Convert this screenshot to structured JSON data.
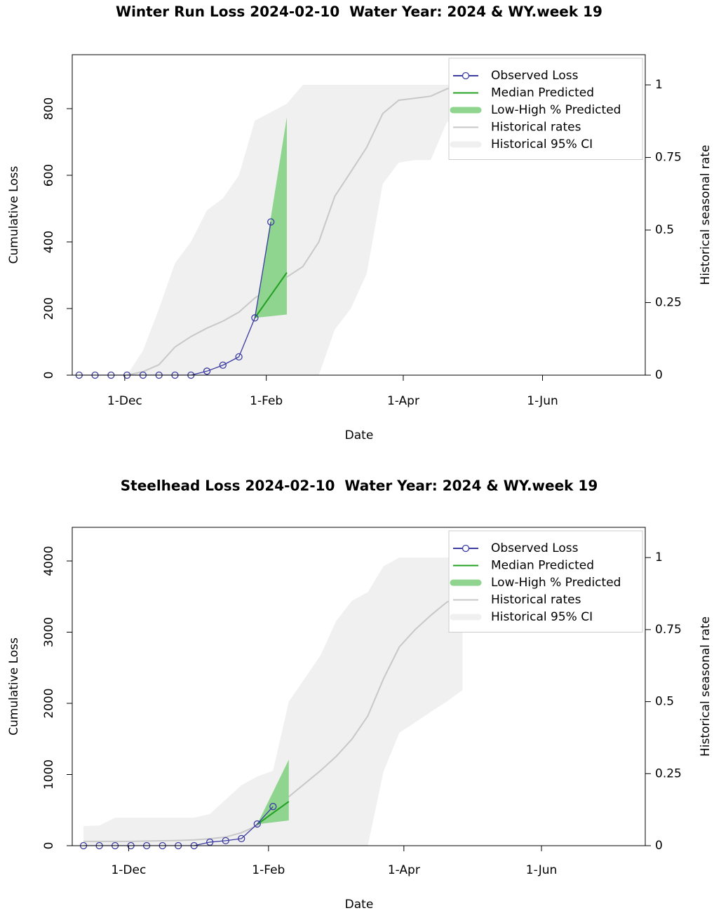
{
  "chart_data": [
    {
      "type": "line",
      "title": "Winter Run Loss 2024-02-10  Water Year: 2024 & WY.week 19",
      "x_label": "Date",
      "y_label": "Cumulative Loss",
      "y2_label": "Historical seasonal rate",
      "xlim": [
        "2023-11-08",
        "2024-07-16"
      ],
      "xticks": [
        {
          "value": "2023-12-01",
          "label": "1-Dec"
        },
        {
          "value": "2024-02-01",
          "label": "1-Feb"
        },
        {
          "value": "2024-04-01",
          "label": "1-Apr"
        },
        {
          "value": "2024-06-01",
          "label": "1-Jun"
        }
      ],
      "ylim": [
        0,
        962
      ],
      "yticks": [
        0,
        200,
        400,
        600,
        800
      ],
      "y2lim": [
        0,
        1.104
      ],
      "y2ticks": [
        0,
        0.25,
        0.5,
        0.75,
        1
      ],
      "legend": "topright",
      "series": [
        {
          "name": "Historical 95% CI",
          "color": "#f0f0f0",
          "axis": "y2",
          "x": [
            "2023-12-02",
            "2023-12-09",
            "2023-12-16",
            "2023-12-23",
            "2023-12-30",
            "2024-01-06",
            "2024-01-13",
            "2024-01-20",
            "2024-01-27",
            "2024-02-03",
            "2024-02-10",
            "2024-02-17",
            "2024-02-24",
            "2024-03-02",
            "2024-03-09",
            "2024-03-16",
            "2024-03-23",
            "2024-03-30",
            "2024-04-06",
            "2024-04-13",
            "2024-04-20",
            "2024-04-27"
          ],
          "low": [
            0,
            0,
            0,
            0,
            0,
            0,
            0,
            0,
            0,
            0,
            0,
            0,
            0,
            0.157,
            0.229,
            0.35,
            0.659,
            0.732,
            0.741,
            0.741,
            0.87,
            0.9
          ],
          "high": [
            0,
            0.085,
            0.229,
            0.386,
            0.459,
            0.568,
            0.609,
            0.688,
            0.877,
            0.906,
            0.935,
            1,
            1,
            1,
            1,
            1,
            1,
            1,
            1,
            1,
            1,
            1
          ]
        },
        {
          "name": "Historical rates",
          "color": "#c8c8c8",
          "axis": "y2",
          "x": [
            "2023-12-02",
            "2023-12-09",
            "2023-12-16",
            "2023-12-23",
            "2023-12-30",
            "2024-01-06",
            "2024-01-13",
            "2024-01-20",
            "2024-01-27",
            "2024-02-03",
            "2024-02-10",
            "2024-02-17",
            "2024-02-24",
            "2024-03-02",
            "2024-03-09",
            "2024-03-16",
            "2024-03-23",
            "2024-03-30",
            "2024-04-06",
            "2024-04-13",
            "2024-04-20",
            "2024-04-27"
          ],
          "values": [
            0,
            0.012,
            0.036,
            0.097,
            0.133,
            0.162,
            0.186,
            0.217,
            0.266,
            0.302,
            0.338,
            0.374,
            0.459,
            0.616,
            0.7,
            0.785,
            0.901,
            0.947,
            0.954,
            0.961,
            0.986,
            1
          ]
        },
        {
          "name": "Low-High % Predicted",
          "color": "#8fd48f",
          "x": [
            "2024-01-27",
            "2024-02-10"
          ],
          "low": [
            172,
            182
          ],
          "high": [
            172,
            775
          ]
        },
        {
          "name": "Median Predicted",
          "color": "#22a022",
          "x": [
            "2024-01-27",
            "2024-02-10"
          ],
          "values": [
            172,
            308
          ]
        },
        {
          "name": "Observed Loss",
          "color": "#3b3ba0",
          "marker": "circle",
          "x": [
            "2023-11-11",
            "2023-11-18",
            "2023-11-25",
            "2023-12-02",
            "2023-12-09",
            "2023-12-16",
            "2023-12-23",
            "2023-12-30",
            "2024-01-06",
            "2024-01-13",
            "2024-01-20",
            "2024-01-27",
            "2024-02-03"
          ],
          "values": [
            0,
            0,
            0,
            0,
            0,
            0,
            0,
            0,
            12,
            30,
            55,
            172,
            460
          ]
        }
      ]
    },
    {
      "type": "line",
      "title": "Steelhead Loss 2024-02-10  Water Year: 2024 & WY.week 19",
      "x_label": "Date",
      "y_label": "Cumulative Loss",
      "y2_label": "Historical seasonal rate",
      "xlim": [
        "2023-11-06",
        "2024-07-17"
      ],
      "xticks": [
        {
          "value": "2023-12-01",
          "label": "1-Dec"
        },
        {
          "value": "2024-02-01",
          "label": "1-Feb"
        },
        {
          "value": "2024-04-01",
          "label": "1-Apr"
        },
        {
          "value": "2024-06-01",
          "label": "1-Jun"
        }
      ],
      "ylim": [
        0,
        4473
      ],
      "yticks": [
        0,
        1000,
        2000,
        3000,
        4000
      ],
      "y2lim": [
        0,
        1.105
      ],
      "y2ticks": [
        0,
        0.25,
        0.5,
        0.75,
        1
      ],
      "legend": "topright",
      "series": [
        {
          "name": "Historical 95% CI",
          "color": "#f0f0f0",
          "axis": "y2",
          "x": [
            "2023-11-11",
            "2023-11-18",
            "2023-11-25",
            "2023-12-02",
            "2023-12-09",
            "2023-12-16",
            "2023-12-23",
            "2023-12-30",
            "2024-01-06",
            "2024-01-13",
            "2024-01-20",
            "2024-01-27",
            "2024-02-03",
            "2024-02-10",
            "2024-02-17",
            "2024-02-24",
            "2024-03-02",
            "2024-03-09",
            "2024-03-16",
            "2024-03-23",
            "2024-03-30",
            "2024-04-06",
            "2024-04-13",
            "2024-04-20",
            "2024-04-27"
          ],
          "low": [
            0,
            0,
            0,
            0,
            0,
            0,
            0,
            0,
            0,
            0,
            0,
            0,
            0,
            0,
            0,
            0,
            0,
            0,
            0,
            0.258,
            0.392,
            0.428,
            0.465,
            0.5,
            0.54
          ],
          "high": [
            0.068,
            0.07,
            0.097,
            0.097,
            0.097,
            0.097,
            0.097,
            0.097,
            0.11,
            0.16,
            0.21,
            0.24,
            0.26,
            0.5,
            0.58,
            0.66,
            0.78,
            0.85,
            0.88,
            0.97,
            1,
            1,
            1,
            1,
            1
          ]
        },
        {
          "name": "Historical rates",
          "color": "#c8c8c8",
          "axis": "y2",
          "x": [
            "2023-11-11",
            "2023-11-18",
            "2023-11-25",
            "2023-12-02",
            "2023-12-09",
            "2023-12-16",
            "2023-12-23",
            "2023-12-30",
            "2024-01-06",
            "2024-01-13",
            "2024-01-20",
            "2024-01-27",
            "2024-02-03",
            "2024-02-10",
            "2024-02-17",
            "2024-02-24",
            "2024-03-02",
            "2024-03-09",
            "2024-03-16",
            "2024-03-23",
            "2024-03-30",
            "2024-04-06",
            "2024-04-13",
            "2024-04-20",
            "2024-04-27"
          ],
          "values": [
            0.015,
            0.015,
            0.015,
            0.015,
            0.016,
            0.017,
            0.018,
            0.02,
            0.024,
            0.03,
            0.045,
            0.07,
            0.115,
            0.17,
            0.215,
            0.26,
            0.31,
            0.37,
            0.45,
            0.58,
            0.69,
            0.75,
            0.8,
            0.845,
            0.87
          ]
        },
        {
          "name": "Low-High % Predicted",
          "color": "#8fd48f",
          "x": [
            "2024-01-27",
            "2024-02-10"
          ],
          "low": [
            300,
            355
          ],
          "high": [
            300,
            1210
          ]
        },
        {
          "name": "Median Predicted",
          "color": "#22a022",
          "x": [
            "2024-01-27",
            "2024-02-10"
          ],
          "values": [
            300,
            620
          ]
        },
        {
          "name": "Observed Loss",
          "color": "#3b3ba0",
          "marker": "circle",
          "x": [
            "2023-11-11",
            "2023-11-18",
            "2023-11-25",
            "2023-12-02",
            "2023-12-09",
            "2023-12-16",
            "2023-12-23",
            "2023-12-30",
            "2024-01-06",
            "2024-01-13",
            "2024-01-20",
            "2024-01-27",
            "2024-02-03"
          ],
          "values": [
            0,
            0,
            0,
            0,
            0,
            0,
            0,
            0,
            50,
            70,
            100,
            305,
            550
          ]
        }
      ]
    }
  ]
}
